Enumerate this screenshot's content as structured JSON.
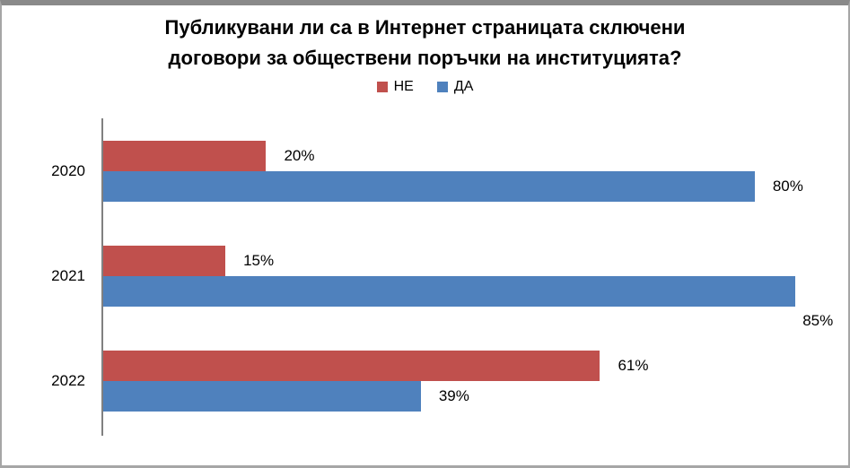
{
  "colors": {
    "series_ne": "#c0504d",
    "series_da": "#4f81bd",
    "axis_line": "#808080",
    "frame_border": "#a6a6a6",
    "frame_top_bar": "#8a8a8a",
    "text": "#000000"
  },
  "chart_data": {
    "type": "bar",
    "orientation": "horizontal",
    "title": "Публикувани ли са в Интернет страницата сключени договори за обществени поръчки на институцията?",
    "categories": [
      "2020",
      "2021",
      "2022"
    ],
    "series": [
      {
        "name": "НЕ",
        "slug": "ne",
        "color": "#c0504d",
        "values": [
          20,
          15,
          61
        ]
      },
      {
        "name": "ДА",
        "slug": "da",
        "color": "#4f81bd",
        "values": [
          80,
          85,
          39
        ]
      }
    ],
    "value_suffix": "%",
    "xlabel": "",
    "ylabel": "",
    "xlim": [
      0,
      90.6
    ],
    "grid": false,
    "legend_position": "top",
    "data_labels": "outside-end"
  }
}
